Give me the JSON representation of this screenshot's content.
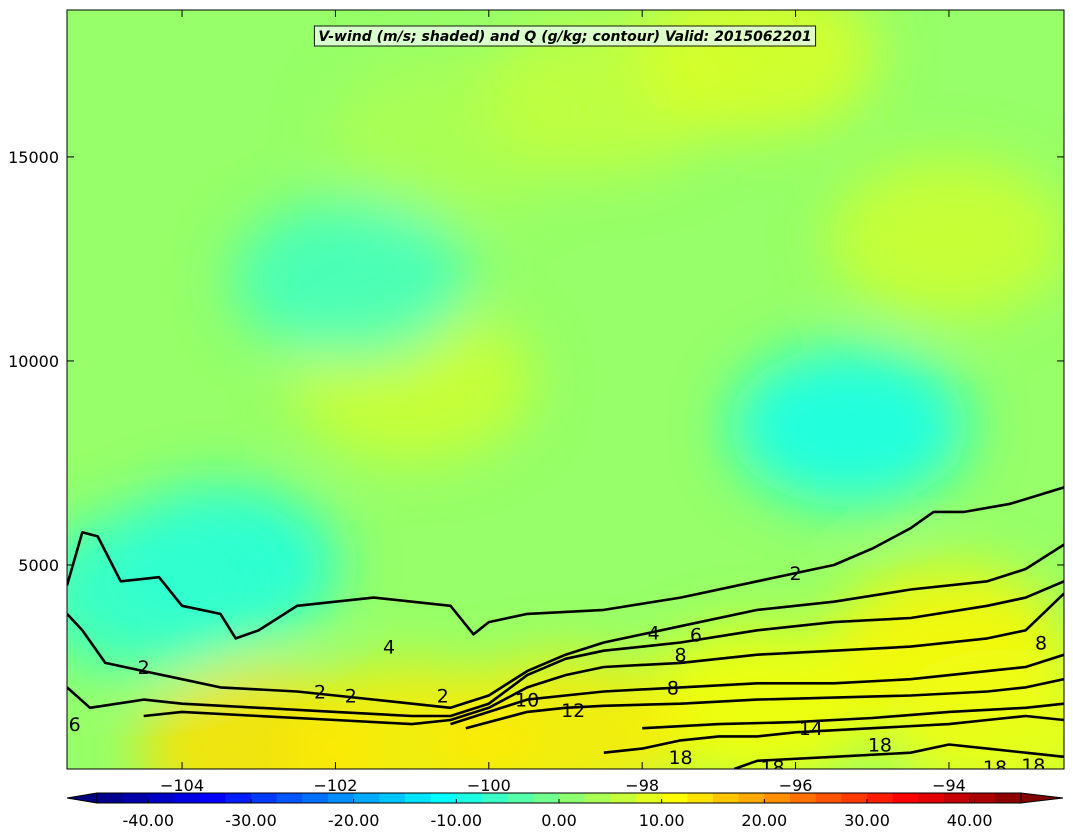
{
  "chart_data": {
    "type": "heatmap",
    "title": "V-wind (m/s; shaded) and Q (g/kg; contour) Valid: 2015062201",
    "xlabel": "",
    "ylabel": "",
    "xlim": [
      -105.5,
      -92.5
    ],
    "ylim": [
      0,
      18600
    ],
    "x_ticks": [
      -104,
      -102,
      -100,
      -98,
      -96,
      -94
    ],
    "x_tick_labels": [
      "−104",
      "−102",
      "−100",
      "−98",
      "−96",
      "−94"
    ],
    "y_ticks": [
      5000,
      10000,
      15000
    ],
    "y_tick_labels": [
      "5000",
      "10000",
      "15000"
    ],
    "grid": false,
    "shaded_field": {
      "name": "V-wind",
      "units": "m/s",
      "colormap": "jet",
      "range": [
        -45,
        45
      ],
      "extend": "both",
      "colorbar_ticks": [
        -40,
        -30,
        -20,
        -10,
        0,
        10,
        20,
        30,
        40
      ],
      "colorbar_labels": [
        "-40.00",
        "-30.00",
        "-20.00",
        "-10.00",
        "0.00",
        "10.00",
        "20.00",
        "30.00",
        "40.00"
      ],
      "features": [
        {
          "x": -100.5,
          "y": 15500,
          "value": 4
        },
        {
          "x": -98.5,
          "y": 16500,
          "value": 6
        },
        {
          "x": -96.5,
          "y": 17500,
          "value": 8
        },
        {
          "x": -94,
          "y": 13000,
          "value": 7
        },
        {
          "x": -101,
          "y": 9500,
          "value": 7
        },
        {
          "x": -101.8,
          "y": 12000,
          "value": -6
        },
        {
          "x": -95.3,
          "y": 8400,
          "value": -10
        },
        {
          "x": -103.5,
          "y": 5000,
          "value": -9
        },
        {
          "x": -104.5,
          "y": 4300,
          "value": -7
        },
        {
          "x": -94,
          "y": 3000,
          "value": 12
        },
        {
          "x": -96.5,
          "y": 1500,
          "value": 11
        },
        {
          "x": -99,
          "y": 800,
          "value": 13
        },
        {
          "x": -103,
          "y": 500,
          "value": 14
        },
        {
          "x": -101,
          "y": 600,
          "value": 13
        },
        {
          "x": -93.3,
          "y": 1000,
          "value": 10
        }
      ]
    },
    "contour_field": {
      "name": "Q",
      "units": "g/kg",
      "levels": [
        2,
        4,
        6,
        8,
        10,
        12,
        14,
        16,
        18
      ],
      "lines": [
        {
          "level": 2,
          "points": [
            [
              -105.5,
              4500
            ],
            [
              -105.3,
              5800
            ],
            [
              -105.1,
              5700
            ],
            [
              -104.8,
              4600
            ],
            [
              -104.3,
              4700
            ],
            [
              -104,
              4000
            ],
            [
              -103.5,
              3800
            ],
            [
              -103.3,
              3200
            ],
            [
              -103,
              3400
            ],
            [
              -102.5,
              4000
            ],
            [
              -102,
              4100
            ],
            [
              -101.5,
              4200
            ],
            [
              -101,
              4100
            ],
            [
              -100.5,
              4000
            ],
            [
              -100.2,
              3300
            ],
            [
              -100,
              3600
            ],
            [
              -99.5,
              3800
            ],
            [
              -98.5,
              3900
            ],
            [
              -97.5,
              4200
            ],
            [
              -96.5,
              4600
            ],
            [
              -95.5,
              5000
            ],
            [
              -95,
              5400
            ],
            [
              -94.5,
              5900
            ],
            [
              -94.2,
              6300
            ],
            [
              -93.8,
              6300
            ],
            [
              -93.2,
              6500
            ],
            [
              -92.5,
              6900
            ]
          ]
        },
        {
          "level": 4,
          "points": [
            [
              -105.5,
              3800
            ],
            [
              -105.3,
              3400
            ],
            [
              -105,
              2600
            ],
            [
              -104.5,
              2400
            ],
            [
              -104,
              2200
            ],
            [
              -103.5,
              2000
            ],
            [
              -102.5,
              1900
            ],
            [
              -102,
              1800
            ],
            [
              -101,
              1600
            ],
            [
              -100.5,
              1500
            ],
            [
              -100,
              1800
            ],
            [
              -99.5,
              2400
            ],
            [
              -99,
              2800
            ],
            [
              -98.5,
              3100
            ],
            [
              -97.5,
              3500
            ],
            [
              -96.5,
              3900
            ],
            [
              -95.5,
              4100
            ],
            [
              -94.5,
              4400
            ],
            [
              -93.5,
              4600
            ],
            [
              -93,
              4900
            ],
            [
              -92.5,
              5500
            ]
          ]
        },
        {
          "level": 6,
          "points": [
            [
              -105.5,
              2000
            ],
            [
              -105.2,
              1500
            ],
            [
              -104.5,
              1700
            ],
            [
              -104,
              1600
            ],
            [
              -103,
              1500
            ],
            [
              -102,
              1400
            ],
            [
              -101,
              1300
            ],
            [
              -100.5,
              1300
            ],
            [
              -100,
              1600
            ],
            [
              -99.5,
              2300
            ],
            [
              -99,
              2700
            ],
            [
              -98.5,
              2900
            ],
            [
              -97.5,
              3100
            ],
            [
              -96.5,
              3400
            ],
            [
              -95.5,
              3600
            ],
            [
              -94.5,
              3700
            ],
            [
              -93.5,
              4000
            ],
            [
              -93,
              4200
            ],
            [
              -92.5,
              4600
            ]
          ]
        },
        {
          "level": 8,
          "points": [
            [
              -104.5,
              1300
            ],
            [
              -104,
              1400
            ],
            [
              -103,
              1300
            ],
            [
              -102,
              1200
            ],
            [
              -101,
              1100
            ],
            [
              -100.5,
              1200
            ],
            [
              -100,
              1500
            ],
            [
              -99.5,
              2000
            ],
            [
              -99,
              2300
            ],
            [
              -98.5,
              2500
            ],
            [
              -97.5,
              2600
            ],
            [
              -96.5,
              2800
            ],
            [
              -95.5,
              2900
            ],
            [
              -94.5,
              3000
            ],
            [
              -93.5,
              3200
            ],
            [
              -93,
              3400
            ],
            [
              -92.5,
              4300
            ]
          ]
        },
        {
          "level": 10,
          "points": [
            [
              -100.5,
              1100
            ],
            [
              -100,
              1400
            ],
            [
              -99.5,
              1700
            ],
            [
              -99,
              1800
            ],
            [
              -98.5,
              1900
            ],
            [
              -97.5,
              2000
            ],
            [
              -96.5,
              2100
            ],
            [
              -95.5,
              2100
            ],
            [
              -94.5,
              2200
            ],
            [
              -93.5,
              2400
            ],
            [
              -93,
              2500
            ],
            [
              -92.5,
              2800
            ]
          ]
        },
        {
          "level": 12,
          "points": [
            [
              -100.3,
              1000
            ],
            [
              -99.5,
              1400
            ],
            [
              -99,
              1500
            ],
            [
              -98.5,
              1550
            ],
            [
              -97.5,
              1600
            ],
            [
              -96.5,
              1700
            ],
            [
              -95.5,
              1750
            ],
            [
              -94.5,
              1800
            ],
            [
              -93.5,
              1900
            ],
            [
              -93,
              2000
            ],
            [
              -92.5,
              2200
            ]
          ]
        },
        {
          "level": 14,
          "points": [
            [
              -98,
              1000
            ],
            [
              -97,
              1100
            ],
            [
              -96,
              1150
            ],
            [
              -95,
              1250
            ],
            [
              -94,
              1400
            ],
            [
              -93,
              1500
            ],
            [
              -92.5,
              1600
            ]
          ]
        },
        {
          "level": 16,
          "points": [
            [
              -98.5,
              400
            ],
            [
              -98,
              500
            ],
            [
              -97.5,
              700
            ],
            [
              -97,
              800
            ],
            [
              -96.5,
              800
            ],
            [
              -96,
              900
            ],
            [
              -95,
              1000
            ],
            [
              -94,
              1100
            ],
            [
              -93.5,
              1200
            ],
            [
              -93,
              1300
            ],
            [
              -92.5,
              1200
            ]
          ]
        },
        {
          "level": 18,
          "points": [
            [
              -96.8,
              0
            ],
            [
              -96.5,
              200
            ],
            [
              -95.5,
              300
            ],
            [
              -94.5,
              400
            ],
            [
              -94,
              600
            ],
            [
              -93.5,
              500
            ],
            [
              -93,
              400
            ],
            [
              -92.5,
              300
            ]
          ]
        }
      ],
      "labels": [
        {
          "text": "2",
          "x": -96.0,
          "y": 4800
        },
        {
          "text": "4",
          "x": -97.85,
          "y": 3350
        },
        {
          "text": "6",
          "x": -97.3,
          "y": 3300
        },
        {
          "text": "8",
          "x": -97.5,
          "y": 2800
        },
        {
          "text": "10",
          "x": -99.5,
          "y": 1700
        },
        {
          "text": "12",
          "x": -98.9,
          "y": 1450
        },
        {
          "text": "14",
          "x": -95.8,
          "y": 1000
        },
        {
          "text": "18",
          "x": -97.5,
          "y": 300
        },
        {
          "text": "18",
          "x": -94.9,
          "y": 600
        },
        {
          "text": "18",
          "x": -96.3,
          "y": 50
        },
        {
          "text": "18",
          "x": -93.4,
          "y": 50
        },
        {
          "text": "18",
          "x": -92.9,
          "y": 100
        },
        {
          "text": "4",
          "x": -101.3,
          "y": 3000
        },
        {
          "text": "2",
          "x": -102.2,
          "y": 1900
        },
        {
          "text": "2",
          "x": -101.8,
          "y": 1800
        },
        {
          "text": "2",
          "x": -100.6,
          "y": 1800
        },
        {
          "text": "2",
          "x": -104.5,
          "y": 2500
        },
        {
          "text": "8",
          "x": -97.6,
          "y": 2000
        },
        {
          "text": "8",
          "x": -92.8,
          "y": 3100
        },
        {
          "text": "6",
          "x": -105.4,
          "y": 1100
        }
      ]
    }
  }
}
